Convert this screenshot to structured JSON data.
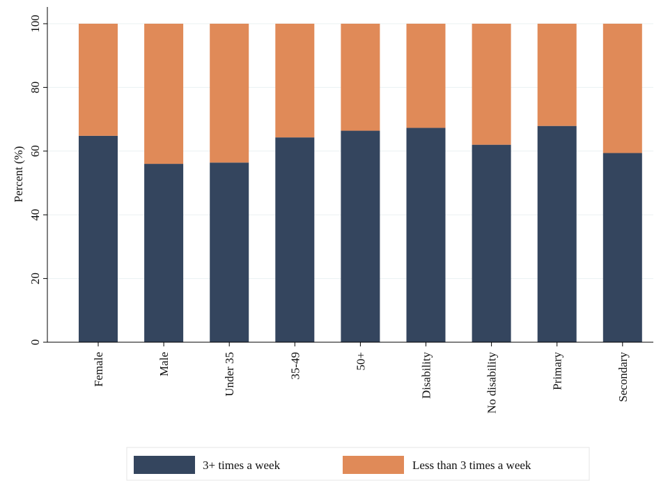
{
  "chart_data": {
    "type": "bar",
    "stacked": true,
    "categories": [
      "Female",
      "Male",
      "Under 35",
      "35-49",
      "50+",
      "Disability",
      "No disability",
      "Primary",
      "Secondary"
    ],
    "series": [
      {
        "name": "3+ times a week",
        "color": "#34455e",
        "values": [
          64.8,
          56.0,
          56.4,
          64.3,
          66.4,
          67.3,
          62.0,
          67.9,
          59.4
        ]
      },
      {
        "name": "Less than 3 times a week",
        "color": "#e08a58",
        "values": [
          35.2,
          44.0,
          43.6,
          35.7,
          33.6,
          32.7,
          38.0,
          32.1,
          40.6
        ]
      }
    ],
    "ylabel": "Percent (%)",
    "xlabel": "",
    "ylim": [
      0,
      100
    ],
    "yticks": [
      0,
      20,
      40,
      60,
      80,
      100
    ],
    "grid": true,
    "legend": "bottom"
  }
}
